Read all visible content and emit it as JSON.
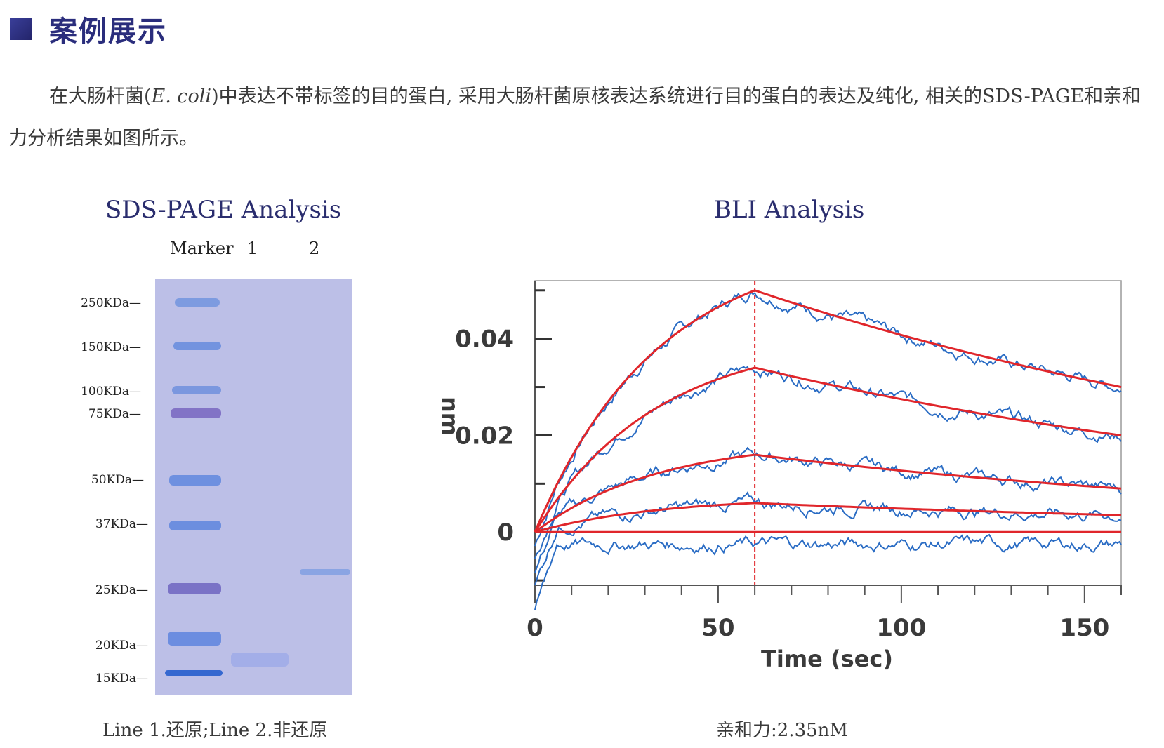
{
  "header": {
    "title": "案例展示"
  },
  "intro": {
    "text_before": "在大肠杆菌(",
    "organism": "E. coli",
    "text_after": ")中表达不带标签的目的蛋白, 采用大肠杆菌原核表达系统进行目的蛋白的表达及纯化, 相关的SDS-PAGE和亲和力分析结果如图所示。"
  },
  "sds_page": {
    "title": "SDS-PAGE Analysis",
    "lane_labels": [
      "Marker",
      "1",
      "2"
    ],
    "markers": [
      "250KDa—",
      "150KDa—",
      "100KDa—",
      "75KDa—",
      "50KDa—",
      "37KDa—",
      "25KDa—",
      "20KDa—",
      "15KDa—"
    ],
    "caption": "Line 1.还原;Line 2.非还原",
    "colors": {
      "gel": "#bcbfe7",
      "band": "#6f8fd6",
      "band_dark": "#7a6fbf"
    }
  },
  "chart_data": {
    "type": "line",
    "title": "BLI Analysis",
    "xlabel": "Time (sec)",
    "ylabel": "nm",
    "xlim": [
      0,
      160
    ],
    "ylim": [
      -0.011,
      0.052
    ],
    "x_ticks": [
      0,
      50,
      100,
      150
    ],
    "y_ticks": [
      0,
      0.02,
      0.04
    ],
    "y_tick_labels": [
      "0",
      "0.02",
      "0.04"
    ],
    "association_end": 60,
    "series": [
      {
        "name": "fit-1",
        "kind": "fit",
        "peak": 0.05,
        "end": 0.03
      },
      {
        "name": "fit-2",
        "kind": "fit",
        "peak": 0.034,
        "end": 0.02
      },
      {
        "name": "fit-3",
        "kind": "fit",
        "peak": 0.016,
        "end": 0.009
      },
      {
        "name": "fit-4",
        "kind": "fit",
        "peak": 0.006,
        "end": 0.0035
      },
      {
        "name": "fit-5",
        "kind": "fit",
        "peak": 0.0,
        "end": 0.0
      }
    ],
    "caption": "亲和力:2.35nM",
    "colors": {
      "fit": "#e0262b",
      "raw": "#2a6cc4",
      "axis": "#555555"
    }
  }
}
